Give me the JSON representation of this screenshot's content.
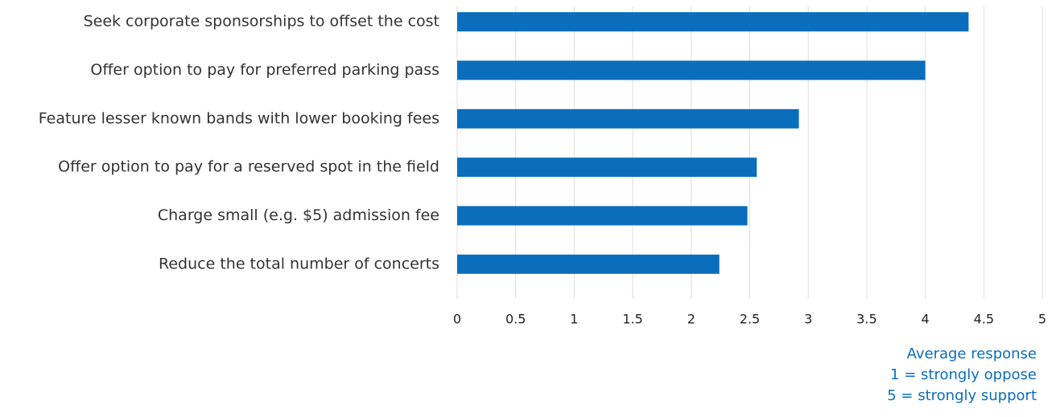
{
  "chart_data": {
    "type": "bar",
    "orientation": "horizontal",
    "categories": [
      "Seek corporate sponsorships to offset the cost",
      "Offer option to pay for preferred parking pass",
      "Feature lesser known bands with lower booking fees",
      "Offer option to pay for a reserved spot in the field",
      "Charge small (e.g. $5) admission fee",
      "Reduce the total number of concerts"
    ],
    "values": [
      4.37,
      4.0,
      2.92,
      2.56,
      2.48,
      2.24
    ],
    "color": "#0a6ebd",
    "xlim": [
      0,
      5
    ],
    "xticks": [
      0,
      0.5,
      1,
      1.5,
      2,
      2.5,
      3,
      3.5,
      4,
      4.5,
      5
    ],
    "grid": true,
    "xlabel": [
      "Average response",
      "1 = strongly oppose",
      "5 = strongly support"
    ]
  }
}
